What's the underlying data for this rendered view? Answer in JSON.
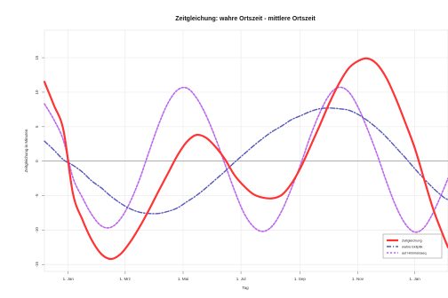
{
  "chart_data": {
    "type": "line",
    "title": "Zeitgleichung: wahre Ortszeit - mittlere Ortszeit",
    "xlabel": "Tag",
    "ylabel": "Zeitgleichung in Minuten",
    "xlim": [
      -25,
      400
    ],
    "ylim": [
      -16,
      19
    ],
    "xticks": [
      {
        "value": 0,
        "label": "1. Jan"
      },
      {
        "value": 60,
        "label": "1. Mrz"
      },
      {
        "value": 121,
        "label": "1. Mai"
      },
      {
        "value": 182,
        "label": "1. Jul"
      },
      {
        "value": 244,
        "label": "1. Sep"
      },
      {
        "value": 305,
        "label": "1. Nov"
      },
      {
        "value": 365,
        "label": "1. Jan"
      }
    ],
    "yticks": [
      {
        "value": -15,
        "label": "-15"
      },
      {
        "value": -10,
        "label": "-10"
      },
      {
        "value": -5,
        "label": "-5"
      },
      {
        "value": 0,
        "label": "0"
      },
      {
        "value": 5,
        "label": "5"
      },
      {
        "value": 10,
        "label": "10"
      },
      {
        "value": 15,
        "label": "15"
      }
    ],
    "grid": true,
    "zero_line": true,
    "legend_position": "bottom-right",
    "series": [
      {
        "name": "Zeitgleichung",
        "color": "#ff3333",
        "dash": "solid",
        "x": [
          -25,
          -15,
          -5,
          5,
          15,
          25,
          35,
          45,
          55,
          65,
          75,
          85,
          95,
          105,
          115,
          125,
          135,
          145,
          155,
          165,
          175,
          185,
          195,
          205,
          215,
          225,
          235,
          245,
          255,
          265,
          275,
          285,
          295,
          305,
          315,
          325,
          335,
          345,
          355,
          365,
          375,
          385,
          395,
          400
        ],
        "values": [
          11.5,
          8.1,
          4.5,
          -4.7,
          -8.5,
          -11.5,
          -13.5,
          -14.2,
          -13.5,
          -11.8,
          -9.6,
          -7.1,
          -4.4,
          -1.8,
          0.8,
          2.8,
          3.8,
          3.4,
          2.1,
          0.3,
          -2.0,
          -3.6,
          -4.8,
          -5.3,
          -5.4,
          -4.9,
          -3.3,
          -0.9,
          2.1,
          5.2,
          8.4,
          11.2,
          13.4,
          14.5,
          14.9,
          14.1,
          12.1,
          9.1,
          5.6,
          1.9,
          -2.7,
          -7.2,
          -10.8,
          -12.5
        ]
      },
      {
        "name": "wahre Ekliptik",
        "color": "#5555bb",
        "dash": "dashdot",
        "x": [
          -25,
          -15,
          -5,
          5,
          15,
          25,
          35,
          45,
          55,
          65,
          75,
          85,
          95,
          105,
          115,
          125,
          135,
          145,
          155,
          165,
          175,
          185,
          195,
          205,
          215,
          225,
          235,
          245,
          255,
          265,
          275,
          285,
          295,
          305,
          315,
          325,
          335,
          345,
          355,
          365,
          375,
          385,
          395,
          400
        ],
        "values": [
          2.9,
          1.6,
          0.2,
          -0.6,
          -1.6,
          -2.9,
          -3.9,
          -5.1,
          -6.1,
          -6.9,
          -7.4,
          -7.6,
          -7.6,
          -7.3,
          -6.8,
          -5.9,
          -5.0,
          -3.9,
          -2.7,
          -1.5,
          -0.2,
          1.0,
          2.2,
          3.3,
          4.3,
          5.1,
          6.0,
          6.6,
          7.2,
          7.6,
          7.7,
          7.6,
          7.4,
          6.8,
          5.9,
          4.8,
          3.5,
          2.0,
          0.5,
          -1.1,
          -2.6,
          -4.0,
          -5.2,
          -5.6
        ]
      },
      {
        "name": "auf Himmelsaeq.",
        "color": "#bb66ee",
        "dash": "dotted",
        "x": [
          -25,
          -15,
          -5,
          5,
          15,
          25,
          35,
          45,
          55,
          65,
          75,
          85,
          95,
          105,
          115,
          125,
          135,
          145,
          155,
          165,
          175,
          185,
          195,
          205,
          215,
          225,
          235,
          245,
          255,
          265,
          275,
          285,
          295,
          305,
          315,
          325,
          335,
          345,
          355,
          365,
          375,
          385,
          395,
          400
        ],
        "values": [
          8.3,
          6.0,
          3.0,
          -2.4,
          -5.3,
          -7.8,
          -9.4,
          -9.6,
          -8.4,
          -6.0,
          -2.7,
          1.3,
          5.2,
          8.4,
          10.3,
          10.6,
          9.2,
          6.7,
          3.4,
          -0.4,
          -4.2,
          -7.5,
          -9.5,
          -10.2,
          -9.4,
          -7.2,
          -4.0,
          -0.4,
          3.6,
          7.0,
          9.6,
          10.7,
          10.1,
          7.9,
          4.7,
          1.1,
          -2.9,
          -6.5,
          -9.1,
          -10.3,
          -9.6,
          -7.3,
          -4.2,
          -2.5
        ]
      }
    ]
  }
}
